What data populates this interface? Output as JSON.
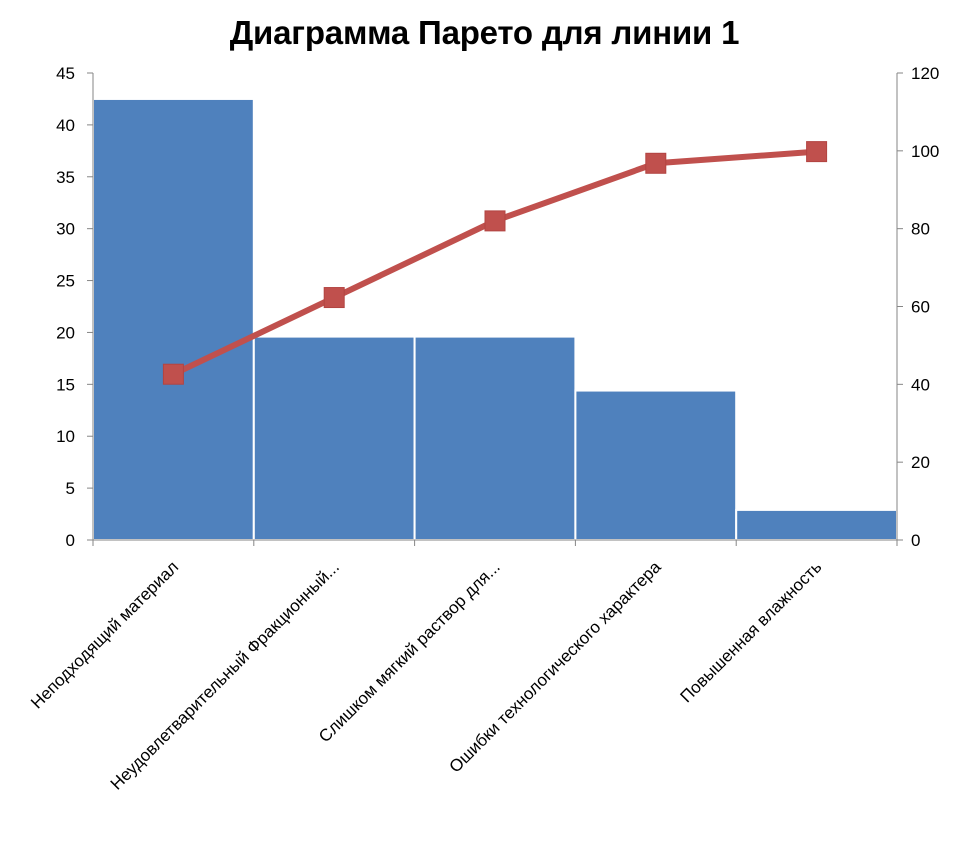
{
  "chart_data": {
    "type": "bar",
    "title": "Диаграмма Парето для линии 1",
    "categories": [
      "Неподходящий материал",
      "Неудовлетварительный Фракционный...",
      "Слишком мягкий раствор для...",
      "Ошибки технологического характера",
      "Повышенная влажность"
    ],
    "series": [
      {
        "type": "bar",
        "axis": "left",
        "color": "#4F81BD",
        "values": [
          42.5,
          19.6,
          19.6,
          14.4,
          2.9
        ]
      },
      {
        "type": "line",
        "axis": "right",
        "color": "#C0504D",
        "marker": "square",
        "values": [
          42.6,
          62.3,
          82.0,
          96.8,
          99.8
        ]
      }
    ],
    "y_left": {
      "min": 0,
      "max": 45,
      "ticks": [
        0,
        5,
        10,
        15,
        20,
        25,
        30,
        35,
        40,
        45
      ]
    },
    "y_right": {
      "min": 0,
      "max": 120,
      "ticks": [
        0,
        20,
        40,
        60,
        80,
        100,
        120
      ]
    },
    "xlabel": "",
    "ylabel": "",
    "grid": false,
    "legend": "none"
  }
}
